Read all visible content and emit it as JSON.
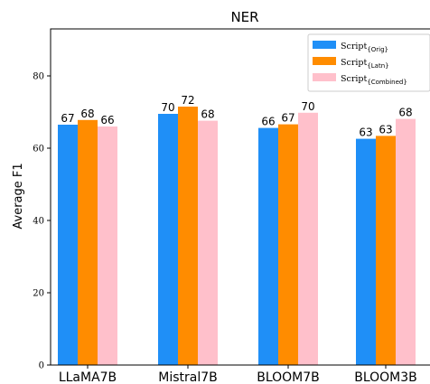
{
  "chart_data": {
    "type": "bar",
    "title": "NER",
    "ylabel": "Average F1",
    "xlabel": "",
    "ylim": [
      0,
      93
    ],
    "yticks": [
      0,
      20,
      40,
      60,
      80
    ],
    "categories": [
      "LLaMA7B",
      "Mistral7B",
      "BLOOM7B",
      "BLOOM3B"
    ],
    "series": [
      {
        "name": "Script",
        "subscript": "{Orig}",
        "color": "#1f8ff7",
        "values": [
          66.5,
          69.5,
          65.6,
          62.6
        ],
        "labels": [
          "67",
          "70",
          "66",
          "63"
        ]
      },
      {
        "name": "Script",
        "subscript": "{Latn}",
        "color": "#ff8c00",
        "values": [
          67.8,
          71.5,
          66.6,
          63.4
        ],
        "labels": [
          "68",
          "72",
          "67",
          "63"
        ]
      },
      {
        "name": "Script",
        "subscript": "{Combined}",
        "color": "#ffc0cb",
        "values": [
          66.0,
          67.6,
          69.8,
          68.1
        ],
        "labels": [
          "66",
          "68",
          "70",
          "68"
        ]
      }
    ],
    "legend_position": "top-right",
    "grid": false
  }
}
